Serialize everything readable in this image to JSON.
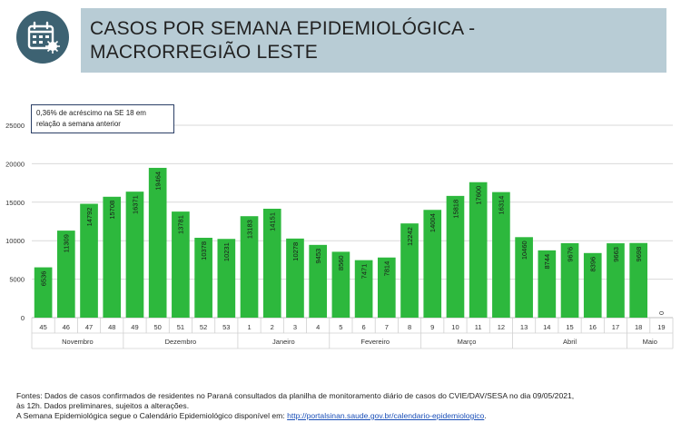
{
  "header": {
    "title": "CASOS POR SEMANA EPIDEMIOLÓGICA -\nMACRORREGIÃO LESTE",
    "icon": "calendar-virus-icon",
    "icon_bg": "#3d6272",
    "title_bg": "#b8ccd5"
  },
  "annotation": {
    "text": "0,36% de acréscimo na SE 18 em relação a semana anterior"
  },
  "chart_data": {
    "type": "bar",
    "bar_color": "#2db83d",
    "categories": [
      "45",
      "46",
      "47",
      "48",
      "49",
      "50",
      "51",
      "52",
      "53",
      "1",
      "2",
      "3",
      "4",
      "5",
      "6",
      "7",
      "8",
      "9",
      "10",
      "11",
      "12",
      "13",
      "14",
      "15",
      "16",
      "17",
      "18",
      "19"
    ],
    "values": [
      6536,
      11309,
      14792,
      15708,
      16371,
      19464,
      13781,
      10378,
      10231,
      13183,
      14151,
      10278,
      9453,
      8560,
      7471,
      7814,
      12242,
      14004,
      15818,
      17600,
      16314,
      10460,
      8744,
      9676,
      8396,
      9663,
      9698,
      0
    ],
    "value_labels": [
      "6536",
      "11309",
      "14792",
      "15708",
      "16371",
      "19464",
      "13781",
      "10378",
      "10231",
      "13183",
      "14151",
      "10278",
      "9453",
      "8560",
      "7471",
      "7814",
      "12242",
      "14004",
      "15818",
      "17600",
      "16314",
      "10460",
      "8744",
      "9676",
      "8396",
      "9663",
      "9698",
      "0"
    ],
    "months": [
      {
        "name": "Novembro",
        "start": 0,
        "end": 3
      },
      {
        "name": "Dezembro",
        "start": 4,
        "end": 8
      },
      {
        "name": "Janeiro",
        "start": 9,
        "end": 12
      },
      {
        "name": "Fevereiro",
        "start": 13,
        "end": 16
      },
      {
        "name": "Março",
        "start": 17,
        "end": 20
      },
      {
        "name": "Abril",
        "start": 21,
        "end": 25
      },
      {
        "name": "Maio",
        "start": 26,
        "end": 27
      }
    ],
    "yticks": [
      "0",
      "5000",
      "10000",
      "15000",
      "20000",
      "25000"
    ],
    "ylim": [
      0,
      25000
    ],
    "grid": true,
    "xlabel": "",
    "ylabel": ""
  },
  "footer": {
    "line1": "Fontes: Dados de casos confirmados de residentes no Paraná consultados da planilha de monitoramento diário de casos do CVIE/DAV/SESA no dia 09/05/2021,",
    "line2": "às 12h. Dados preliminares, sujeitos a alterações.",
    "line3_prefix": "A Semana Epidemiológica segue o Calendário Epidemiológico disponível em: ",
    "link": "http://portalsinan.saude.gov.br/calendario-epidemiologico",
    "line3_suffix": "."
  }
}
